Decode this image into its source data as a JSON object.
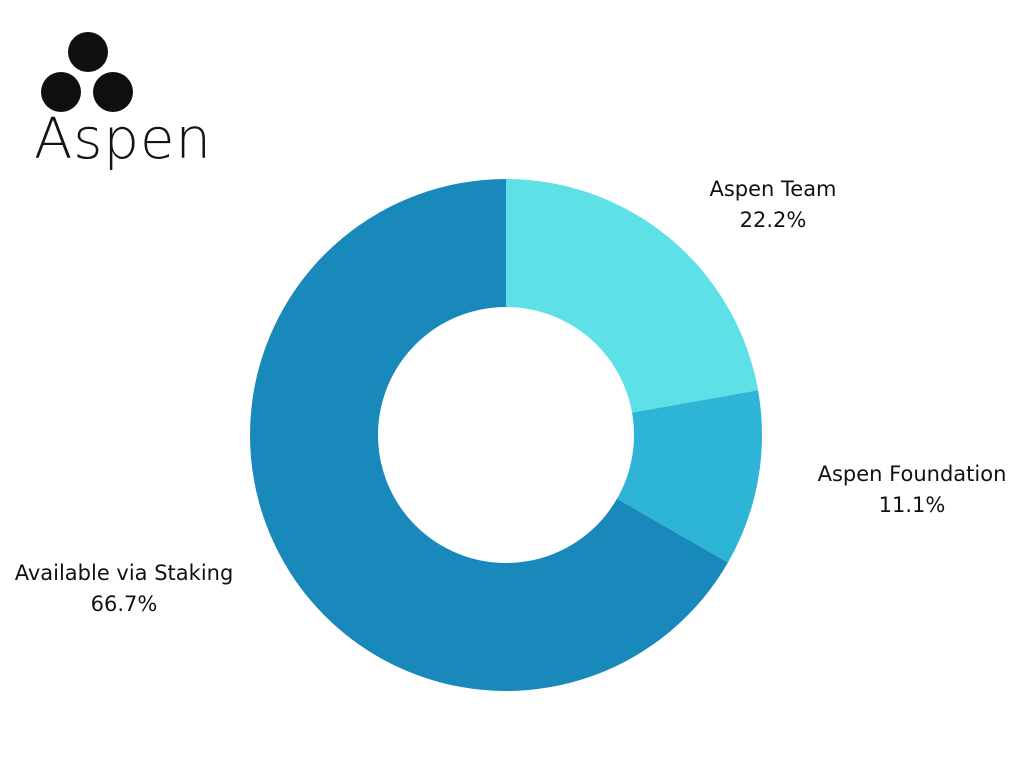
{
  "logo": {
    "name": "Aspen"
  },
  "chart_data": {
    "type": "pie",
    "variant": "donut",
    "title": "",
    "slices": [
      {
        "label": "Aspen Team",
        "value": 22.2,
        "value_label": "22.2%",
        "color": "#5ee1e6"
      },
      {
        "label": "Aspen Foundation",
        "value": 11.1,
        "value_label": "11.1%",
        "color": "#2eb4d6"
      },
      {
        "label": "Available via Staking",
        "value": 66.7,
        "value_label": "66.7%",
        "color": "#1988bb"
      }
    ],
    "legend": "none"
  }
}
